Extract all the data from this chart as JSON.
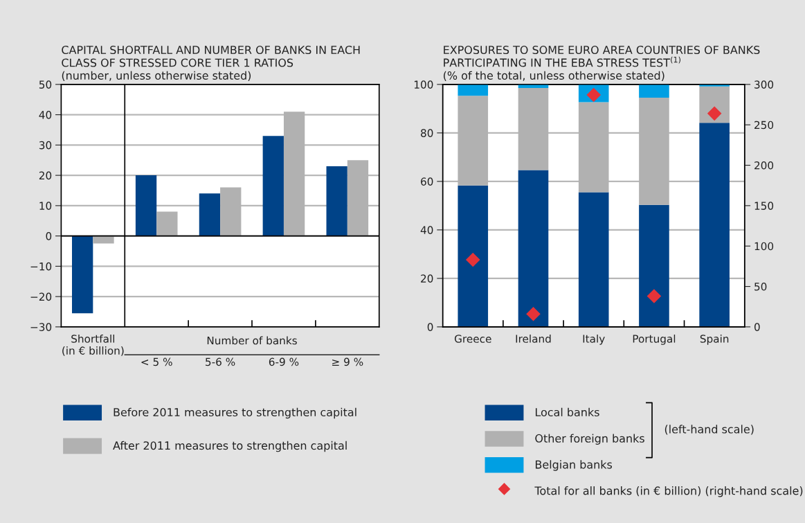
{
  "chart_data": [
    {
      "type": "bar",
      "title": "CAPITAL SHORTFALL AND NUMBER OF BANKS IN EACH\nCLASS OF STRESSED CORE TIER 1 RATIOS",
      "subtitle": "(number, unless otherwise stated)",
      "categories": [
        "Shortfall\n(in € billion)",
        "< 5 %",
        "5-6 %",
        "6-9 %",
        "≥ 9 %"
      ],
      "series": [
        {
          "name": "Before 2011 measures to strengthen capital",
          "color": "#004388",
          "values": [
            -25.5,
            20,
            14,
            33,
            23
          ]
        },
        {
          "name": "After 2011 measures to strengthen capital",
          "color": "#b1b1b1",
          "values": [
            -2.5,
            8,
            16,
            41,
            25
          ]
        }
      ],
      "ylim": [
        -30,
        50
      ],
      "yticks": [
        {
          "value": -30,
          "label": "−30"
        },
        {
          "value": -20,
          "label": "−20"
        },
        {
          "value": -10,
          "label": "−10"
        },
        0,
        10,
        20,
        30,
        40,
        50
      ],
      "annotations": [
        "Number of banks"
      ],
      "grid": "y",
      "legend": "bottom"
    },
    {
      "type": "bar",
      "title": "EXPOSURES TO SOME EURO AREA COUNTRIES OF BANKS\nPARTICIPATING IN THE EBA STRESS TEST$^{(1)}$",
      "subtitle": "(% of the total, unless otherwise stated)",
      "categories": [
        "Greece",
        "Ireland",
        "Italy",
        "Portugal",
        "Spain"
      ],
      "stacked": true,
      "series": [
        {
          "name": "Local banks",
          "color": "#004388",
          "values": [
            58.3,
            64.7,
            55.5,
            50.3,
            84.2
          ]
        },
        {
          "name": "Other foreign banks",
          "color": "#b1b1b1",
          "values": [
            37.0,
            33.8,
            37.2,
            44.2,
            15.0
          ]
        },
        {
          "name": "Belgian banks",
          "color": "#009fe3",
          "values": [
            4.7,
            1.5,
            7.3,
            5.5,
            0.8
          ]
        },
        {
          "name": "Total for all banks (in € billion) (right-hand scale)",
          "type": "scatter",
          "axis": "y2",
          "marker": "diamond",
          "color": "#e63338",
          "values": [
            83,
            16,
            287,
            38,
            264
          ]
        }
      ],
      "ylim": [
        0,
        100
      ],
      "yticks": [
        0,
        20,
        40,
        60,
        80,
        100
      ],
      "y2lim": [
        0,
        300
      ],
      "y2ticks": [
        0,
        50,
        100,
        150,
        200,
        250,
        300
      ],
      "annotations": [
        "(left-hand scale)"
      ],
      "grid": "y",
      "legend": "bottom"
    }
  ]
}
